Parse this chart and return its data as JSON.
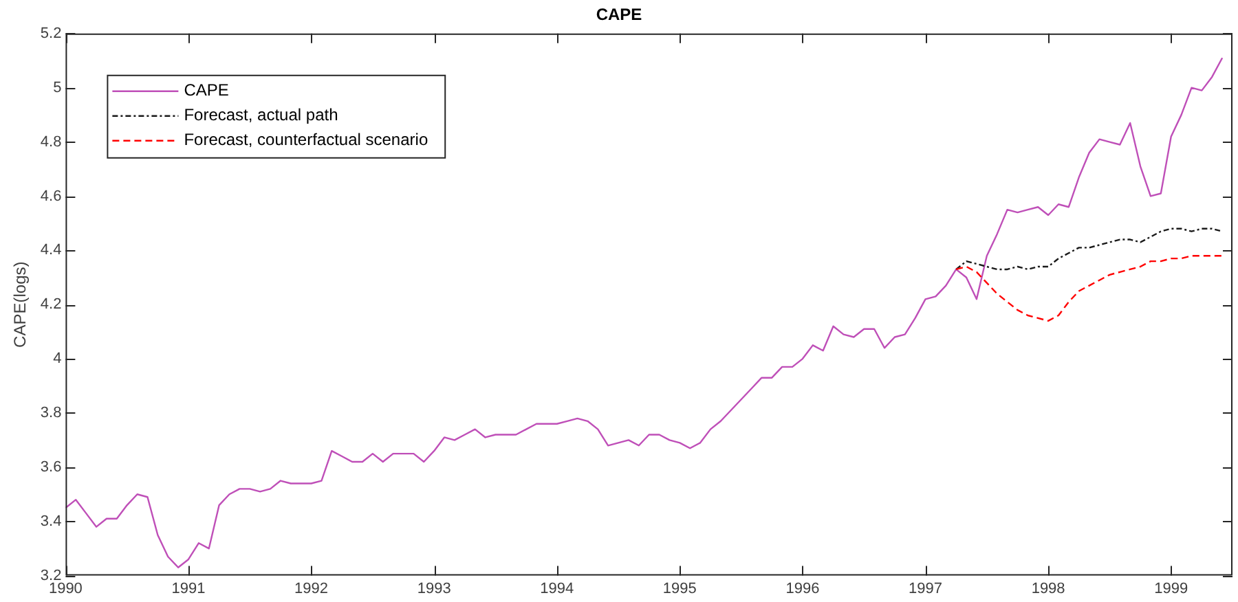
{
  "chart_data": {
    "type": "line",
    "title": "CAPE",
    "ylabel": "CAPE(logs)",
    "x": [
      "1990-01",
      "1990-02",
      "1990-03",
      "1990-04",
      "1990-05",
      "1990-06",
      "1990-07",
      "1990-08",
      "1990-09",
      "1990-10",
      "1990-11",
      "1990-12",
      "1991-01",
      "1991-02",
      "1991-03",
      "1991-04",
      "1991-05",
      "1991-06",
      "1991-07",
      "1991-08",
      "1991-09",
      "1991-10",
      "1991-11",
      "1991-12",
      "1992-01",
      "1992-02",
      "1992-03",
      "1992-04",
      "1992-05",
      "1992-06",
      "1992-07",
      "1992-08",
      "1992-09",
      "1992-10",
      "1992-11",
      "1992-12",
      "1993-01",
      "1993-02",
      "1993-03",
      "1993-04",
      "1993-05",
      "1993-06",
      "1993-07",
      "1993-08",
      "1993-09",
      "1993-10",
      "1993-11",
      "1993-12",
      "1994-01",
      "1994-02",
      "1994-03",
      "1994-04",
      "1994-05",
      "1994-06",
      "1994-07",
      "1994-08",
      "1994-09",
      "1994-10",
      "1994-11",
      "1994-12",
      "1995-01",
      "1995-02",
      "1995-03",
      "1995-04",
      "1995-05",
      "1995-06",
      "1995-07",
      "1995-08",
      "1995-09",
      "1995-10",
      "1995-11",
      "1995-12",
      "1996-01",
      "1996-02",
      "1996-03",
      "1996-04",
      "1996-05",
      "1996-06",
      "1996-07",
      "1996-08",
      "1996-09",
      "1996-10",
      "1996-11",
      "1996-12",
      "1997-01",
      "1997-02",
      "1997-03",
      "1997-04",
      "1997-05",
      "1997-06",
      "1997-07",
      "1997-08",
      "1997-09",
      "1997-10",
      "1997-11",
      "1997-12",
      "1998-01",
      "1998-02",
      "1998-03",
      "1998-04",
      "1998-05",
      "1998-06",
      "1998-07",
      "1998-08",
      "1998-09",
      "1998-10",
      "1998-11",
      "1998-12",
      "1999-01",
      "1999-02",
      "1999-03",
      "1999-04",
      "1999-05",
      "1999-06"
    ],
    "series": [
      {
        "name": "CAPE",
        "color": "#bf4fb8",
        "line_style": "solid",
        "values": [
          3.45,
          3.48,
          3.43,
          3.38,
          3.41,
          3.41,
          3.46,
          3.5,
          3.49,
          3.35,
          3.27,
          3.23,
          3.26,
          3.32,
          3.3,
          3.46,
          3.5,
          3.52,
          3.52,
          3.51,
          3.52,
          3.55,
          3.54,
          3.54,
          3.54,
          3.55,
          3.66,
          3.64,
          3.62,
          3.62,
          3.65,
          3.62,
          3.65,
          3.65,
          3.65,
          3.62,
          3.66,
          3.71,
          3.7,
          3.72,
          3.74,
          3.71,
          3.72,
          3.72,
          3.72,
          3.74,
          3.76,
          3.76,
          3.76,
          3.77,
          3.78,
          3.77,
          3.74,
          3.68,
          3.69,
          3.7,
          3.68,
          3.72,
          3.72,
          3.7,
          3.69,
          3.67,
          3.69,
          3.74,
          3.77,
          3.81,
          3.85,
          3.89,
          3.93,
          3.93,
          3.97,
          3.97,
          4.0,
          4.05,
          4.03,
          4.12,
          4.09,
          4.08,
          4.11,
          4.11,
          4.04,
          4.08,
          4.09,
          4.15,
          4.22,
          4.23,
          4.27,
          4.33,
          4.3,
          4.22,
          4.38,
          4.46,
          4.55,
          4.54,
          4.55,
          4.56,
          4.53,
          4.57,
          4.56,
          4.67,
          4.76,
          4.81,
          4.8,
          4.79,
          4.87,
          4.71,
          4.6,
          4.61,
          4.82,
          4.9,
          5.0,
          4.99,
          5.04,
          5.11
        ]
      },
      {
        "name": "Forecast, actual path",
        "color": "#1a1a1a",
        "line_style": "dashdot",
        "x": [
          "1997-04",
          "1997-05",
          "1997-06",
          "1997-07",
          "1997-08",
          "1997-09",
          "1997-10",
          "1997-11",
          "1997-12",
          "1998-01",
          "1998-02",
          "1998-03",
          "1998-04",
          "1998-05",
          "1998-06",
          "1998-07",
          "1998-08",
          "1998-09",
          "1998-10",
          "1998-11",
          "1998-12",
          "1999-01",
          "1999-02",
          "1999-03",
          "1999-04",
          "1999-05",
          "1999-06"
        ],
        "values": [
          4.33,
          4.36,
          4.35,
          4.34,
          4.33,
          4.33,
          4.34,
          4.33,
          4.34,
          4.34,
          4.37,
          4.39,
          4.41,
          4.41,
          4.42,
          4.43,
          4.44,
          4.44,
          4.43,
          4.45,
          4.47,
          4.48,
          4.48,
          4.47,
          4.48,
          4.48,
          4.47
        ]
      },
      {
        "name": "Forecast, counterfactual scenario",
        "color": "#ff0000",
        "line_style": "dashed",
        "x": [
          "1997-04",
          "1997-05",
          "1997-06",
          "1997-07",
          "1997-08",
          "1997-09",
          "1997-10",
          "1997-11",
          "1997-12",
          "1998-01",
          "1998-02",
          "1998-03",
          "1998-04",
          "1998-05",
          "1998-06",
          "1998-07",
          "1998-08",
          "1998-09",
          "1998-10",
          "1998-11",
          "1998-12",
          "1999-01",
          "1999-02",
          "1999-03",
          "1999-04",
          "1999-05",
          "1999-06"
        ],
        "values": [
          4.33,
          4.34,
          4.32,
          4.28,
          4.24,
          4.21,
          4.18,
          4.16,
          4.15,
          4.14,
          4.16,
          4.21,
          4.25,
          4.27,
          4.29,
          4.31,
          4.32,
          4.33,
          4.34,
          4.36,
          4.36,
          4.37,
          4.37,
          4.38,
          4.38,
          4.38,
          4.38
        ]
      }
    ],
    "xlim": [
      "1990",
      "1999-07"
    ],
    "xticks": [
      {
        "value": "1990",
        "label": "1990"
      },
      {
        "value": "1991",
        "label": "1991"
      },
      {
        "value": "1992",
        "label": "1992"
      },
      {
        "value": "1993",
        "label": "1993"
      },
      {
        "value": "1994",
        "label": "1994"
      },
      {
        "value": "1995",
        "label": "1995"
      },
      {
        "value": "1996",
        "label": "1996"
      },
      {
        "value": "1997",
        "label": "1997"
      },
      {
        "value": "1998",
        "label": "1998"
      },
      {
        "value": "1999",
        "label": "1999"
      }
    ],
    "ylim": [
      3.2,
      5.2
    ],
    "yticks": [
      3.2,
      3.4,
      3.6,
      3.8,
      4,
      4.2,
      4.4,
      4.6,
      4.8,
      5,
      5.2
    ],
    "legend": "top left",
    "marker": "none"
  }
}
